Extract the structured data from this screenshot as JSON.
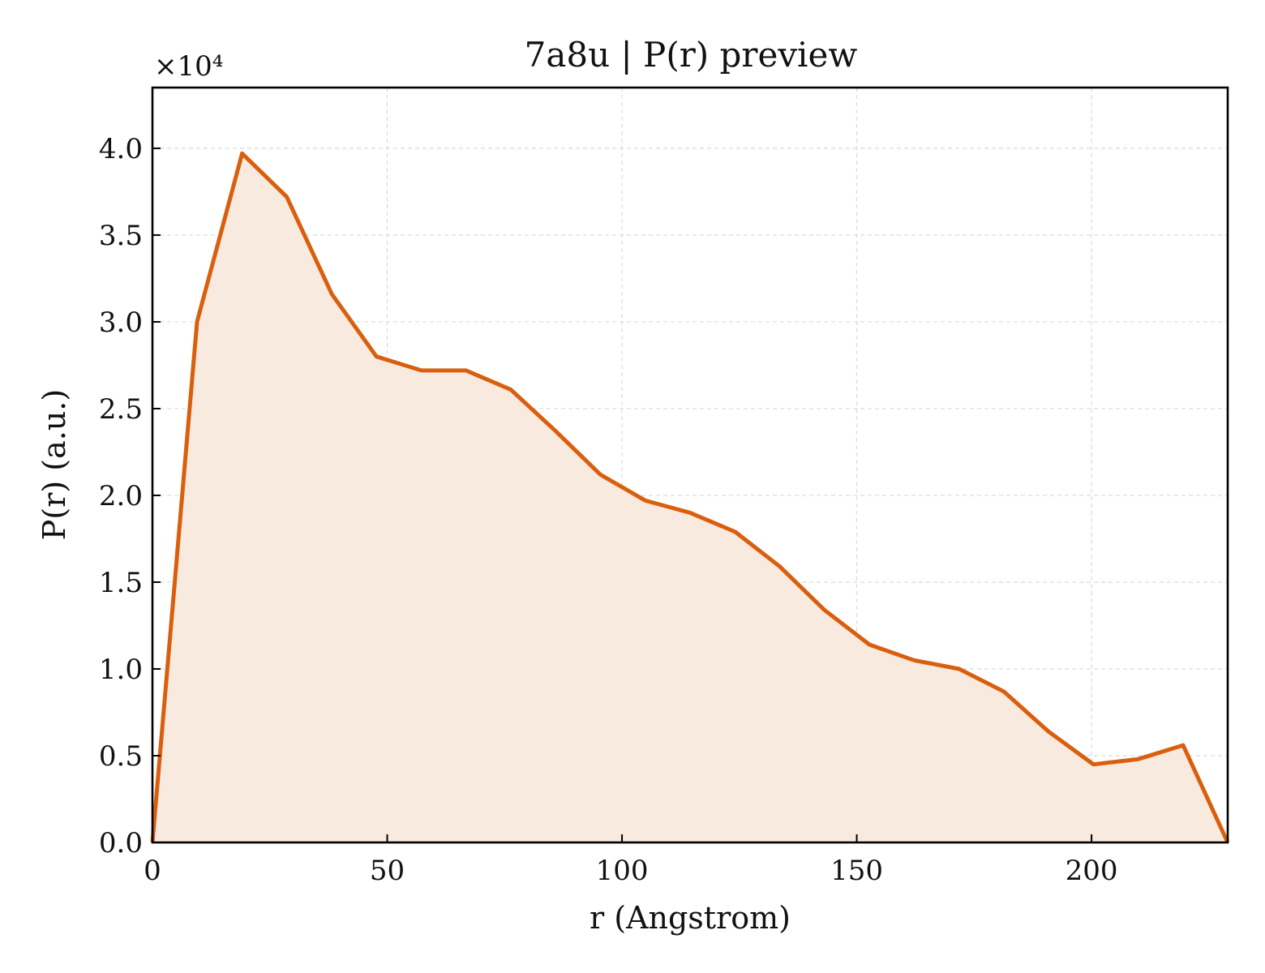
{
  "chart_data": {
    "type": "area",
    "title": "7a8u | P(r) preview",
    "xlabel": "r (Angstrom)",
    "ylabel": "P(r) (a.u.)",
    "y_offset_label": "×10⁴",
    "xlim": [
      0,
      229
    ],
    "ylim": [
      0,
      4.35
    ],
    "y_scale_factor": 10000,
    "x_ticks": [
      0,
      50,
      100,
      150,
      200
    ],
    "y_ticks": [
      0.0,
      0.5,
      1.0,
      1.5,
      2.0,
      2.5,
      3.0,
      3.5,
      4.0
    ],
    "x_tick_labels": [
      "0",
      "50",
      "100",
      "150",
      "200"
    ],
    "y_tick_labels": [
      "0.0",
      "0.5",
      "1.0",
      "1.5",
      "2.0",
      "2.5",
      "3.0",
      "3.5",
      "4.0"
    ],
    "grid": true,
    "line_color": "#d95f0e",
    "fill_color": "#f9eadf",
    "series": [
      {
        "x": [
          0,
          9.5,
          19.1,
          28.6,
          38.2,
          47.7,
          57.3,
          66.8,
          76.3,
          85.9,
          95.4,
          105.0,
          114.5,
          124.1,
          133.6,
          143.1,
          152.7,
          162.2,
          171.8,
          181.3,
          190.8,
          200.4,
          209.9,
          219.5,
          229.0
        ],
        "y": [
          0.0,
          3.0,
          3.97,
          3.72,
          3.16,
          2.8,
          2.72,
          2.72,
          2.61,
          2.37,
          2.12,
          1.97,
          1.9,
          1.79,
          1.59,
          1.34,
          1.14,
          1.05,
          1.0,
          0.87,
          0.64,
          0.45,
          0.48,
          0.56,
          0.0
        ]
      }
    ]
  }
}
